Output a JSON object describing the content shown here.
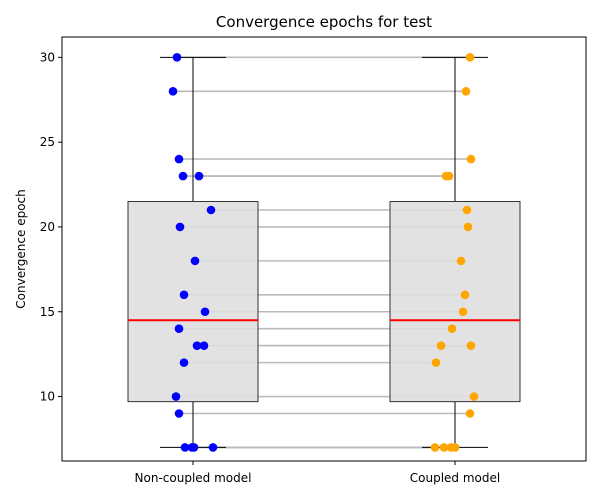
{
  "chart_data": {
    "type": "box",
    "title": "Convergence epochs for test",
    "xlabel": "",
    "ylabel": "Convergence epoch",
    "categories": [
      "Non-coupled model",
      "Coupled model"
    ],
    "ylim": [
      6.2,
      31.2
    ],
    "yticks": [
      10,
      15,
      20,
      25,
      30
    ],
    "grid": false,
    "boxes": [
      {
        "category": "Non-coupled model",
        "q1": 9.7,
        "median": 14.5,
        "q3": 21.5,
        "whisker_low": 7,
        "whisker_high": 30
      },
      {
        "category": "Coupled model",
        "q1": 9.7,
        "median": 14.5,
        "q3": 21.5,
        "whisker_low": 7,
        "whisker_high": 30
      }
    ],
    "series": [
      {
        "category": "Non-coupled model",
        "color": "#0000ff",
        "values": [
          30,
          28,
          24,
          23,
          23,
          21,
          20,
          18,
          16,
          15,
          14,
          13,
          13,
          12,
          10,
          9,
          7,
          7,
          7,
          7
        ]
      },
      {
        "category": "Coupled model",
        "color": "#ffa500",
        "values": [
          30,
          28,
          24,
          23,
          23,
          21,
          20,
          18,
          16,
          15,
          14,
          13,
          13,
          12,
          10,
          9,
          7,
          7,
          7,
          7
        ]
      }
    ],
    "pairing": "each non-coupled observation is connected by a grey line to the corresponding coupled observation",
    "colors": {
      "box_fill": "#dfdfdf",
      "median": "#ff0000",
      "pair_line": "#bbbbbb"
    }
  }
}
